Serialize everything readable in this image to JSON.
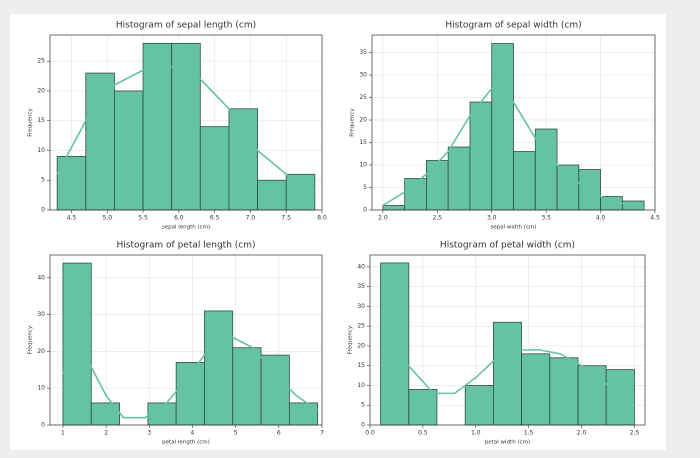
{
  "chart_data": [
    {
      "type": "histogram",
      "title": "Histogram of sepal length (cm)",
      "xlabel": "sepal length (cm)",
      "ylabel": "Frequency",
      "bins": [
        4.3,
        4.7,
        5.1,
        5.5,
        5.9,
        6.3,
        6.7,
        7.1,
        7.5,
        7.9
      ],
      "values": [
        9,
        23,
        20,
        28,
        28,
        14,
        17,
        5,
        6
      ],
      "color": "#66c2a5",
      "edgecolor": "#2f4f44",
      "grid": true,
      "xlim": [
        4.2,
        8.0
      ],
      "ylim": [
        0,
        29.4
      ],
      "xticks": [
        4.5,
        {
          "value": 5.0,
          "label": "5.0"
        },
        5.5,
        {
          "value": 6.0,
          "label": "6.0"
        },
        6.5,
        {
          "value": 7.0,
          "label": "7.0"
        },
        7.5,
        {
          "value": 8.0,
          "label": "8.0"
        }
      ],
      "yticks": [
        0,
        5,
        10,
        15,
        20,
        25
      ],
      "line": {
        "color": "#66c2a5",
        "x": [
          4.3,
          4.7,
          5.1,
          5.5,
          5.9,
          6.3,
          6.7,
          7.1,
          7.5,
          7.9
        ],
        "values": [
          6,
          15,
          21,
          23.5,
          24,
          22,
          17,
          10,
          6,
          3
        ]
      }
    },
    {
      "type": "histogram",
      "title": "Histogram of sepal width (cm)",
      "xlabel": "sepal width (cm)",
      "ylabel": "Frequency",
      "bins": [
        2.0,
        2.2,
        2.4,
        2.6,
        2.8,
        3.0,
        3.2,
        3.4,
        3.6,
        3.8,
        4.0,
        4.2,
        4.4
      ],
      "values": [
        1,
        7,
        11,
        14,
        24,
        37,
        13,
        18,
        10,
        9,
        3,
        2
      ],
      "color": "#66c2a5",
      "edgecolor": "#2f4f44",
      "grid": true,
      "xlim": [
        1.9,
        4.5
      ],
      "ylim": [
        0,
        38.9
      ],
      "xticks": [
        {
          "value": 2.0,
          "label": "2.0"
        },
        2.5,
        {
          "value": 3.0,
          "label": "3.0"
        },
        3.5,
        {
          "value": 4.0,
          "label": "4.0"
        },
        4.5
      ],
      "yticks": [
        0,
        5,
        10,
        15,
        20,
        25,
        30,
        35
      ],
      "line": {
        "color": "#66c2a5",
        "x": [
          2.0,
          2.2,
          2.4,
          2.6,
          2.8,
          3.0,
          3.2,
          3.4,
          3.6,
          3.8,
          4.0,
          4.2,
          4.4
        ],
        "values": [
          1,
          4,
          8,
          13,
          21,
          27,
          24,
          16,
          10,
          6,
          3,
          1.5,
          0.5
        ]
      }
    },
    {
      "type": "histogram",
      "title": "Histogram of petal length (cm)",
      "xlabel": "petal length (cm)",
      "ylabel": "Frequency",
      "bins": [
        1.0,
        1.656,
        2.311,
        2.967,
        3.622,
        4.278,
        4.933,
        5.589,
        6.244,
        6.9
      ],
      "values": [
        44,
        6,
        0,
        6,
        17,
        31,
        21,
        19,
        6
      ],
      "color": "#66c2a5",
      "edgecolor": "#2f4f44",
      "grid": true,
      "xlim": [
        0.7,
        7.0
      ],
      "ylim": [
        0,
        46.2
      ],
      "xticks": [
        1,
        2,
        3,
        4,
        5,
        6,
        7
      ],
      "yticks": [
        0,
        10,
        20,
        30,
        40
      ],
      "line": {
        "color": "#66c2a5",
        "x": [
          1,
          1.3,
          1.6,
          2.0,
          2.4,
          2.9,
          3.4,
          3.9,
          4.4,
          4.9,
          5.4,
          5.9,
          6.4,
          6.9
        ],
        "values": [
          14,
          19,
          17,
          8,
          2,
          2,
          6,
          13,
          21,
          24,
          21,
          14,
          8,
          4
        ]
      }
    },
    {
      "type": "histogram",
      "title": "Histogram of petal width (cm)",
      "xlabel": "petal width (cm)",
      "ylabel": "Frequency",
      "bins": [
        0.1,
        0.367,
        0.633,
        0.9,
        1.167,
        1.433,
        1.7,
        1.967,
        2.233,
        2.5
      ],
      "values": [
        41,
        9,
        0,
        10,
        26,
        18,
        17,
        15,
        14
      ],
      "color": "#66c2a5",
      "edgecolor": "#2f4f44",
      "grid": true,
      "xlim": [
        0.0,
        2.6
      ],
      "ylim": [
        0,
        43
      ],
      "xticks": [
        {
          "value": 0.0,
          "label": "0.0"
        },
        0.5,
        {
          "value": 1.0,
          "label": "1.0"
        },
        1.5,
        {
          "value": 2.0,
          "label": "2.0"
        },
        2.5
      ],
      "yticks": [
        0,
        5,
        10,
        15,
        20,
        25,
        30,
        35,
        40
      ],
      "line": {
        "color": "#66c2a5",
        "x": [
          0.1,
          0.25,
          0.4,
          0.6,
          0.8,
          1.0,
          1.2,
          1.4,
          1.6,
          1.8,
          2.0,
          2.2,
          2.5
        ],
        "values": [
          15,
          18,
          14,
          8,
          8,
          12,
          17,
          19,
          19,
          18,
          15,
          11,
          5
        ]
      }
    }
  ]
}
